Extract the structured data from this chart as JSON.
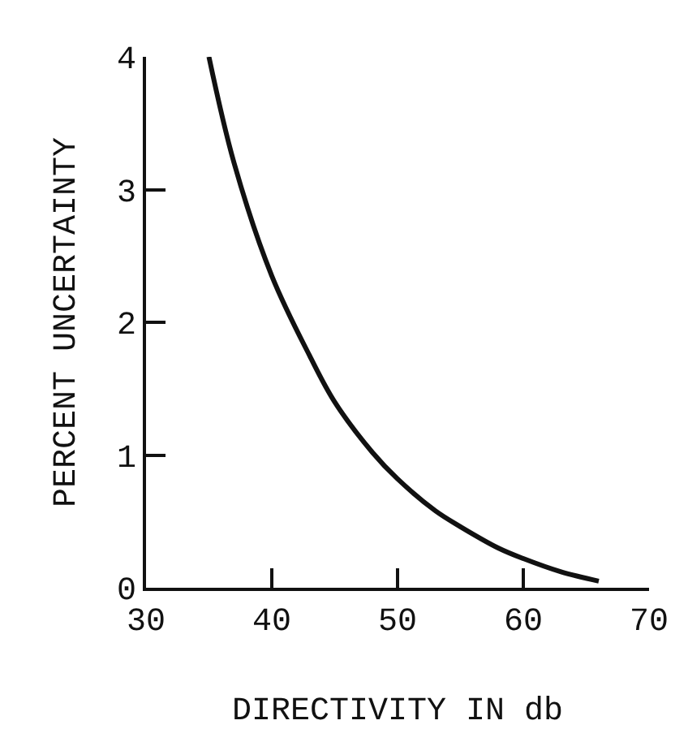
{
  "chart_data": {
    "type": "line",
    "xlabel": "DIRECTIVITY IN db",
    "ylabel": "PERCENT UNCERTAINTY",
    "x": [
      35,
      37,
      40,
      43,
      45,
      48,
      50,
      53,
      55,
      58,
      60,
      63,
      66
    ],
    "series": [
      {
        "color": "#111111",
        "values": [
          4,
          3.2,
          2.35,
          1.75,
          1.4,
          1.02,
          0.82,
          0.58,
          0.46,
          0.3,
          0.22,
          0.12,
          0.05
        ]
      }
    ],
    "xlim": [
      30,
      70
    ],
    "xticks": [
      30,
      40,
      50,
      60,
      70
    ],
    "ylim": [
      0,
      4
    ],
    "yticks": [
      0,
      1,
      2,
      3,
      4
    ],
    "grid": false,
    "marker": "none",
    "line_style": "solid"
  }
}
